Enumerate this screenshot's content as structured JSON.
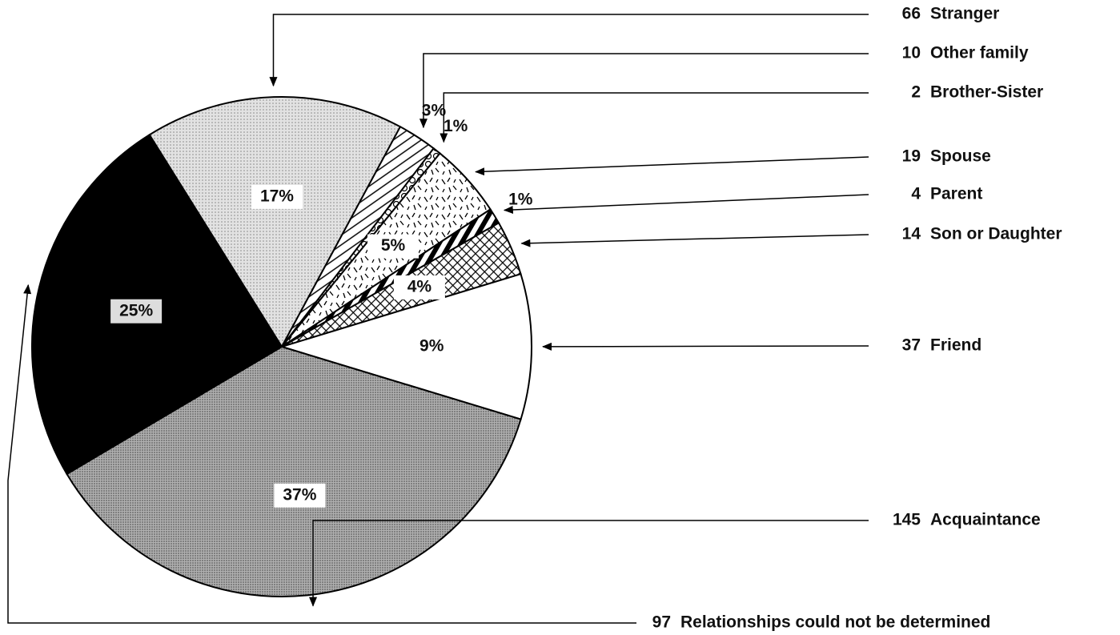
{
  "chart_data": {
    "type": "pie",
    "categories": [
      "Stranger",
      "Other family",
      "Brother-Sister",
      "Spouse",
      "Parent",
      "Son or Daughter",
      "Friend",
      "Acquaintance",
      "Relationships could not be determined"
    ],
    "values": [
      66,
      10,
      2,
      19,
      4,
      14,
      37,
      145,
      97
    ],
    "percent_labels": [
      "17%",
      "3%",
      "1%",
      "5%",
      "1%",
      "4%",
      "9%",
      "37%",
      "25%"
    ],
    "patterns": [
      "dots-light",
      "diagonal",
      "circles",
      "dashes",
      "stripes",
      "crosshatch",
      "none",
      "dots-dark",
      "none"
    ],
    "colors": [
      "#d8d8d8",
      "#ffffff",
      "#ffffff",
      "#ffffff",
      "#ffffff",
      "#ffffff",
      "#ffffff",
      "#a8a8a8",
      "#000000"
    ],
    "start_angle": 328
  }
}
